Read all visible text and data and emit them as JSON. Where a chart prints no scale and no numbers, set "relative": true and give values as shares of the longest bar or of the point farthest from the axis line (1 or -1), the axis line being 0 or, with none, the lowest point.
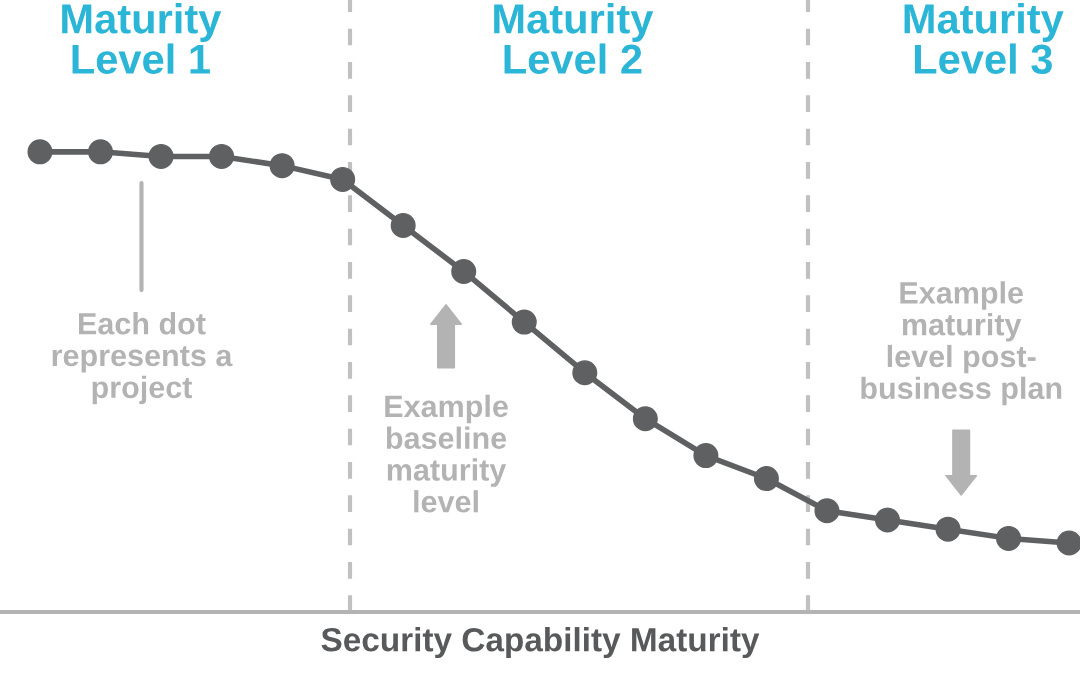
{
  "chart_data": {
    "type": "line",
    "relative": true,
    "xlabel": "Security Capability Maturity",
    "marker": "circle",
    "line_style": "solid",
    "categories": [
      null,
      null,
      null,
      null,
      null,
      null,
      null,
      null,
      null,
      null,
      null,
      null,
      null,
      null,
      null,
      null,
      null,
      null
    ],
    "series": [
      {
        "color": "#5f6062",
        "values": [
          1.0,
          1.0,
          0.99,
          0.99,
          0.97,
          0.94,
          0.84,
          0.74,
          0.63,
          0.52,
          0.42,
          0.34,
          0.29,
          0.22,
          0.2,
          0.18,
          0.16,
          0.15
        ]
      }
    ],
    "annotations": [
      "Maturity\nLevel 1",
      "Maturity\nLevel 2",
      "Maturity\nLevel 3",
      "Each dot\nrepresents a\nproject",
      "Example\nbaseline\nmaturity\nlevel",
      "Example\nmaturity\nlevel post-\nbusiness plan"
    ]
  }
}
